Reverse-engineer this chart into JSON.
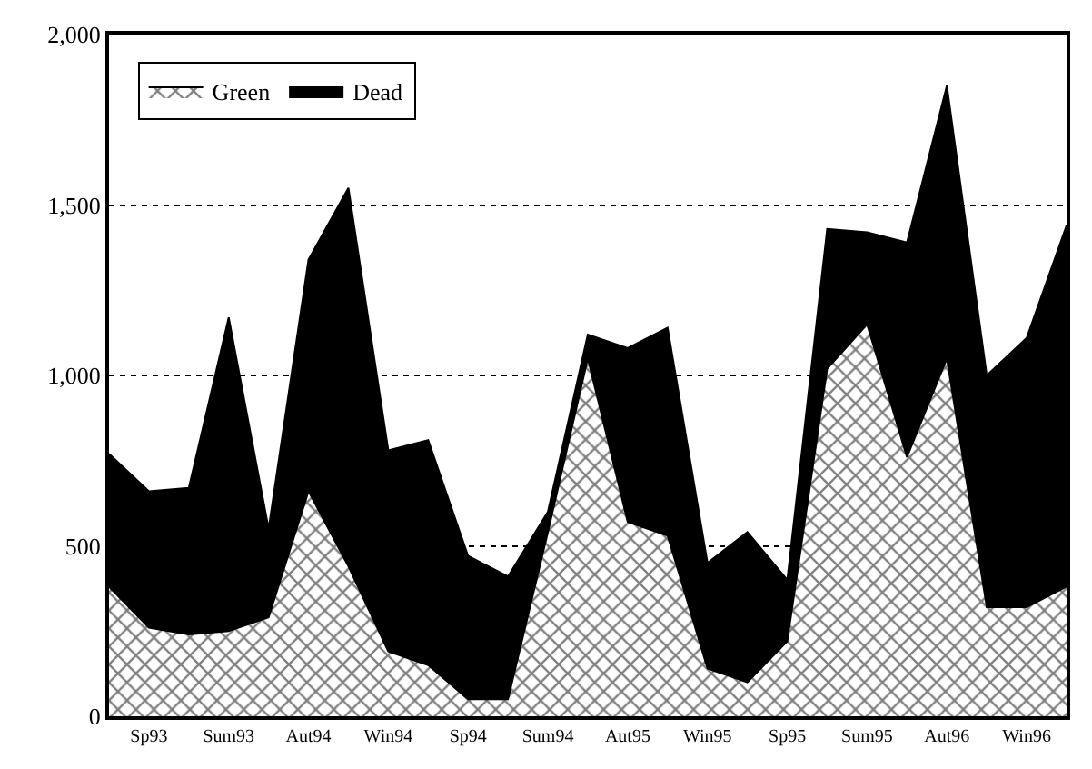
{
  "chart_data": {
    "type": "area",
    "stacked": true,
    "categories": [
      null,
      "Sp93",
      null,
      "Sum93",
      null,
      "Aut94",
      null,
      "Win94",
      null,
      "Sp94",
      null,
      "Sum94",
      null,
      "Aut95",
      null,
      "Win95",
      null,
      "Sp95",
      null,
      "Sum95",
      null,
      "Aut96",
      null,
      "Win96",
      null
    ],
    "series": [
      {
        "name": "Green",
        "color": "#000000",
        "values": [
          380,
          260,
          240,
          250,
          290,
          660,
          440,
          190,
          150,
          50,
          50,
          540,
          1050,
          570,
          530,
          140,
          100,
          220,
          1020,
          1150,
          760,
          1050,
          320,
          320,
          380
        ]
      },
      {
        "name": "Dead",
        "color": "#000000",
        "values": [
          390,
          400,
          430,
          920,
          260,
          680,
          1110,
          590,
          660,
          420,
          360,
          60,
          70,
          510,
          610,
          310,
          440,
          180,
          410,
          270,
          630,
          800,
          680,
          790,
          1060
        ]
      }
    ],
    "ylim": [
      0,
      2000
    ],
    "yticks": [
      {
        "value": 0,
        "label": "0"
      },
      {
        "value": 500,
        "label": "500"
      },
      {
        "value": 1000,
        "label": "1,000"
      },
      {
        "value": 1500,
        "label": "1,500"
      },
      {
        "value": 2000,
        "label": "2,000"
      }
    ],
    "grid": "y",
    "legend": "top left"
  }
}
